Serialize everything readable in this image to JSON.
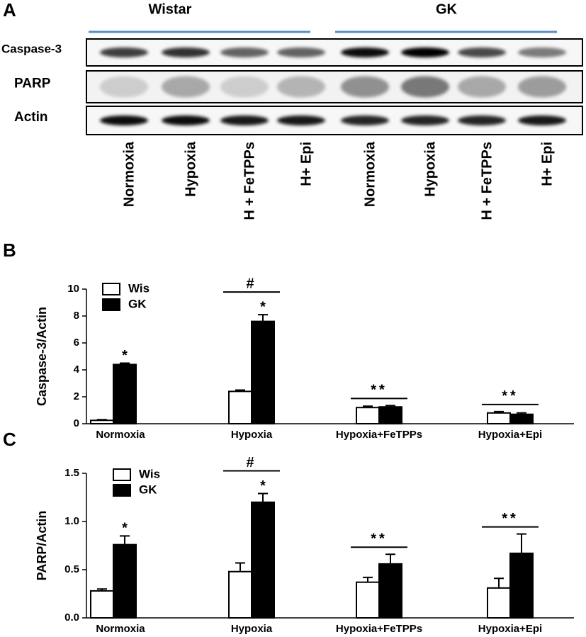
{
  "panel_a": {
    "label": "A",
    "groups": [
      "Wistar",
      "GK"
    ],
    "rows": [
      "Caspase-3",
      "PARP",
      "Actin"
    ],
    "lanes": [
      "Normoxia",
      "Hypoxia",
      "H + FeTPPs",
      "H+ Epi",
      "Normoxia",
      "Hypoxia",
      "H + FeTPPs",
      "H+ Epi"
    ]
  },
  "chart_data": [
    {
      "type": "bar",
      "panel": "B",
      "ylabel": "Caspase-3/Actin",
      "categories": [
        "Normoxia",
        "Hypoxia",
        "Hypoxia+FeTPPs",
        "Hypoxia+Epi"
      ],
      "series": [
        {
          "name": "Wis",
          "color": "#ffffff",
          "values": [
            0.25,
            2.4,
            1.2,
            0.8
          ],
          "errors": [
            0.05,
            0.1,
            0.1,
            0.1
          ]
        },
        {
          "name": "GK",
          "color": "#000000",
          "values": [
            4.4,
            7.6,
            1.25,
            0.7
          ],
          "errors": [
            0.1,
            0.5,
            0.1,
            0.1
          ]
        }
      ],
      "ylim": [
        0,
        10
      ],
      "yticks": [
        0,
        2,
        4,
        6,
        8,
        10
      ],
      "annotations": [
        {
          "text": "*",
          "category": 0,
          "series": 1
        },
        {
          "text": "*",
          "category": 1,
          "series": 1
        },
        {
          "text": "#",
          "category": 1,
          "bracket": true
        },
        {
          "text": "**",
          "category": 2,
          "bracket": true
        },
        {
          "text": "**",
          "category": 3,
          "bracket": true
        }
      ]
    },
    {
      "type": "bar",
      "panel": "C",
      "ylabel": "PARP/Actin",
      "categories": [
        "Normoxia",
        "Hypoxia",
        "Hypoxia+FeTPPs",
        "Hypoxia+Epi"
      ],
      "series": [
        {
          "name": "Wis",
          "color": "#ffffff",
          "values": [
            0.28,
            0.48,
            0.37,
            0.31
          ],
          "errors": [
            0.02,
            0.09,
            0.05,
            0.1
          ]
        },
        {
          "name": "GK",
          "color": "#000000",
          "values": [
            0.76,
            1.2,
            0.56,
            0.67
          ],
          "errors": [
            0.09,
            0.09,
            0.1,
            0.2
          ]
        }
      ],
      "ylim": [
        0,
        1.5
      ],
      "yticks": [
        {
          "value": 0,
          "label": "0.0"
        },
        0.5,
        {
          "value": 1,
          "label": "1.0"
        },
        1.5
      ],
      "annotations": [
        {
          "text": "*",
          "category": 0,
          "series": 1
        },
        {
          "text": "*",
          "category": 1,
          "series": 1
        },
        {
          "text": "#",
          "category": 1,
          "bracket": true
        },
        {
          "text": "**",
          "category": 2,
          "bracket": true
        },
        {
          "text": "**",
          "category": 3,
          "bracket": true
        }
      ]
    }
  ]
}
